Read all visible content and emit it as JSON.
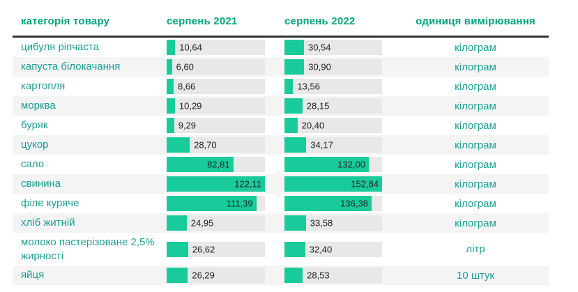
{
  "colors": {
    "accent_bar": "#19cb9a",
    "header_text": "#00a37e",
    "body_teal_text": "#1b9e93",
    "bar_track_bg": "#e8e8e8",
    "row_stripe_bg": "#f4f4f4",
    "header_border": "#323232",
    "value_text": "#222222"
  },
  "table": {
    "columns": [
      "категорія товару",
      "серпень 2021",
      "серпень 2022",
      "одиниця вимірювання"
    ],
    "rows": [
      {
        "category": "цибуля ріпчаста",
        "aug2021": 10.64,
        "aug2021_label": "10,64",
        "aug2022": 30.54,
        "aug2022_label": "30,54",
        "unit": "кілограм"
      },
      {
        "category": "капуста білокачання",
        "aug2021": 6.6,
        "aug2021_label": "6,60",
        "aug2022": 30.9,
        "aug2022_label": "30,90",
        "unit": "кілограм"
      },
      {
        "category": "картопля",
        "aug2021": 8.66,
        "aug2021_label": "8,66",
        "aug2022": 13.56,
        "aug2022_label": "13,56",
        "unit": "кілограм"
      },
      {
        "category": "морква",
        "aug2021": 10.29,
        "aug2021_label": "10,29",
        "aug2022": 28.15,
        "aug2022_label": "28,15",
        "unit": "кілограм"
      },
      {
        "category": "буряк",
        "aug2021": 9.29,
        "aug2021_label": "9,29",
        "aug2022": 20.4,
        "aug2022_label": "20,40",
        "unit": "кілограм"
      },
      {
        "category": "цукор",
        "aug2021": 28.7,
        "aug2021_label": "28,70",
        "aug2022": 34.17,
        "aug2022_label": "34,17",
        "unit": "кілограм"
      },
      {
        "category": "сало",
        "aug2021": 82.81,
        "aug2021_label": "82,81",
        "aug2022": 132.0,
        "aug2022_label": "132,00",
        "unit": "кілограм"
      },
      {
        "category": "свинина",
        "aug2021": 122.11,
        "aug2021_label": "122,11",
        "aug2022": 152.84,
        "aug2022_label": "152,84",
        "unit": "кілограм"
      },
      {
        "category": "філе куряче",
        "aug2021": 111.39,
        "aug2021_label": "111,39",
        "aug2022": 136.38,
        "aug2022_label": "136,38",
        "unit": "кілограм"
      },
      {
        "category": "хліб житній",
        "aug2021": 24.95,
        "aug2021_label": "24,95",
        "aug2022": 33.58,
        "aug2022_label": "33,58",
        "unit": "кілограм"
      },
      {
        "category": "молоко пастерізоване 2,5% жирності",
        "aug2021": 26.62,
        "aug2021_label": "26,62",
        "aug2022": 32.4,
        "aug2022_label": "32,40",
        "unit": "літр"
      },
      {
        "category": "яйця",
        "aug2021": 26.29,
        "aug2021_label": "26,29",
        "aug2022": 28.53,
        "aug2022_label": "28,53",
        "unit": "10 штук"
      }
    ]
  },
  "chart_data": {
    "type": "table",
    "title": "",
    "columns": [
      "категорія товару",
      "серпень 2021",
      "серпень 2022",
      "одиниця вимірювання"
    ],
    "categories": [
      "цибуля ріпчаста",
      "капуста білокачання",
      "картопля",
      "морква",
      "буряк",
      "цукор",
      "сало",
      "свинина",
      "філе куряче",
      "хліб житній",
      "молоко пастерізоване 2,5% жирності",
      "яйця"
    ],
    "series": [
      {
        "name": "серпень 2021",
        "values": [
          10.64,
          6.6,
          8.66,
          10.29,
          9.29,
          28.7,
          82.81,
          122.11,
          111.39,
          24.95,
          26.62,
          26.29
        ]
      },
      {
        "name": "серпень 2022",
        "values": [
          30.54,
          30.9,
          13.56,
          28.15,
          20.4,
          34.17,
          132.0,
          152.84,
          136.38,
          33.58,
          32.4,
          28.53
        ]
      }
    ],
    "units": [
      "кілограм",
      "кілограм",
      "кілограм",
      "кілограм",
      "кілограм",
      "кілограм",
      "кілограм",
      "кілограм",
      "кілограм",
      "кілограм",
      "літр",
      "10 штук"
    ],
    "bar_style": "in-cell horizontal data bars; each value column scaled to its own maximum (122.11 and 152.84) = full track width",
    "value_format": "comma decimal separator, 2 decimals",
    "legend_position": "none",
    "grid": false
  }
}
